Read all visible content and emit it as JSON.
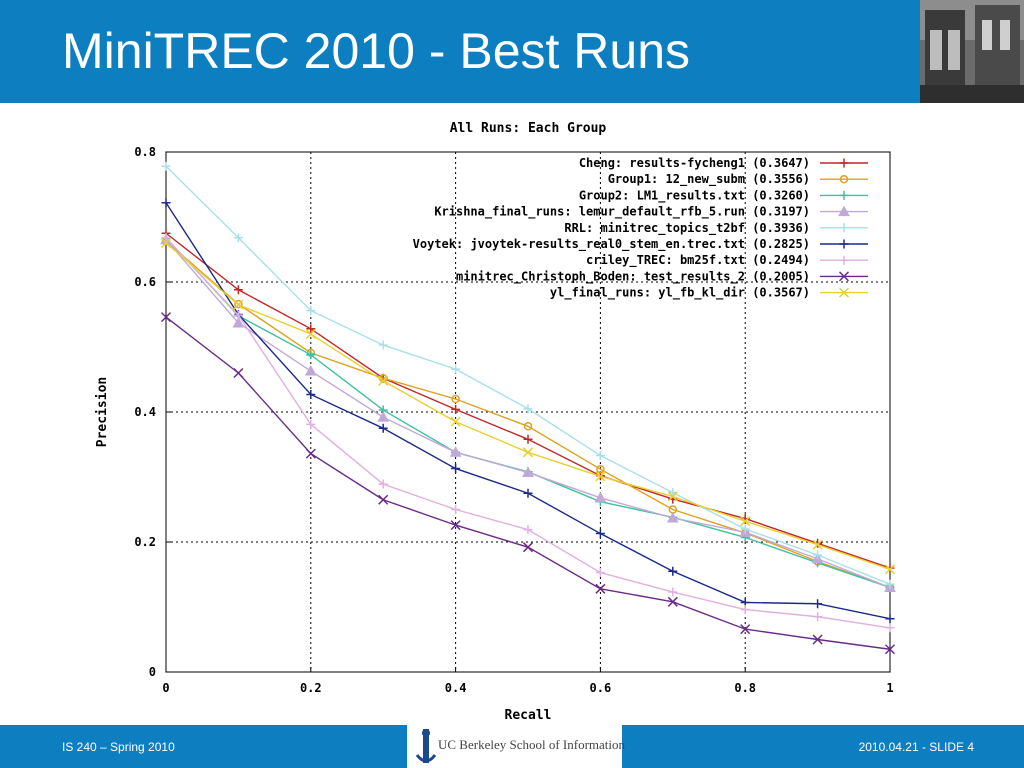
{
  "slide": {
    "title": "MiniTREC 2010 - Best Runs",
    "footer_left": "IS 240 – Spring 2010",
    "footer_right": "2010.04.21 - SLIDE 4",
    "logo_text": "UC Berkeley School of Information",
    "colors": {
      "header": "#0d7fc0",
      "footer": "#0d7fc0"
    }
  },
  "chart_data": {
    "type": "line",
    "title": "All Runs: Each Group",
    "xlabel": "Recall",
    "ylabel": "Precision",
    "xlim": [
      0,
      1
    ],
    "ylim": [
      0,
      0.8
    ],
    "xticks": [
      "0",
      "0.2",
      "0.4",
      "0.6",
      "0.8",
      "1"
    ],
    "yticks": [
      "0",
      "0.2",
      "0.4",
      "0.6",
      "0.8"
    ],
    "grid": true,
    "legend_position": "top-right",
    "x": [
      0,
      0.1,
      0.2,
      0.3,
      0.4,
      0.5,
      0.6,
      0.7,
      0.8,
      0.9,
      1.0
    ],
    "series": [
      {
        "name": "Cheng: results-fycheng1 (0.3647)",
        "color": "#c0282a",
        "marker": "+",
        "values": [
          0.675,
          0.588,
          0.528,
          0.452,
          0.404,
          0.358,
          0.302,
          0.266,
          0.236,
          0.198,
          0.16
        ]
      },
      {
        "name": "Group1: 12_new_subm (0.3556)",
        "color": "#e0a020",
        "marker": "o",
        "values": [
          0.663,
          0.566,
          0.491,
          0.452,
          0.42,
          0.378,
          0.312,
          0.25,
          0.214,
          0.17,
          0.13
        ]
      },
      {
        "name": "Group2: LM1_results.txt (0.3260)",
        "color": "#40c0a0",
        "marker": "+",
        "values": [
          0.668,
          0.548,
          0.488,
          0.403,
          0.338,
          0.308,
          0.262,
          0.238,
          0.207,
          0.168,
          0.13
        ]
      },
      {
        "name": "Krishna_final_runs: lemur_default_rfb_5.run (0.3197)",
        "color": "#c0a8d8",
        "marker": "triangle",
        "values": [
          0.665,
          0.537,
          0.463,
          0.392,
          0.338,
          0.307,
          0.268,
          0.237,
          0.215,
          0.174,
          0.13
        ]
      },
      {
        "name": "RRL: minitrec_topics_t2bf (0.3936)",
        "color": "#a8e0e8",
        "marker": "+",
        "values": [
          0.778,
          0.668,
          0.556,
          0.503,
          0.466,
          0.405,
          0.333,
          0.276,
          0.22,
          0.18,
          0.135
        ]
      },
      {
        "name": "Voytek: jvoytek-results_real0_stem_en.trec.txt (0.2825)",
        "color": "#1a2a8a",
        "marker": "+",
        "values": [
          0.722,
          0.55,
          0.427,
          0.375,
          0.313,
          0.275,
          0.213,
          0.155,
          0.107,
          0.105,
          0.082
        ]
      },
      {
        "name": "criley_TREC: bm25f.txt (0.2494)",
        "color": "#e0b0e0",
        "marker": "+",
        "values": [
          0.668,
          0.549,
          0.381,
          0.289,
          0.25,
          0.219,
          0.153,
          0.123,
          0.096,
          0.085,
          0.068
        ]
      },
      {
        "name": "minitrec_Christoph_Boden: test_results_2 (0.2005)",
        "color": "#6a2a8a",
        "marker": "x",
        "values": [
          0.546,
          0.46,
          0.336,
          0.265,
          0.226,
          0.192,
          0.128,
          0.108,
          0.066,
          0.05,
          0.035
        ]
      },
      {
        "name": "yl_final_runs: yl_fb_kl_dir (0.3567)",
        "color": "#e8d030",
        "marker": "x",
        "values": [
          0.66,
          0.565,
          0.52,
          0.448,
          0.385,
          0.338,
          0.301,
          0.27,
          0.232,
          0.196,
          0.158
        ]
      }
    ]
  }
}
